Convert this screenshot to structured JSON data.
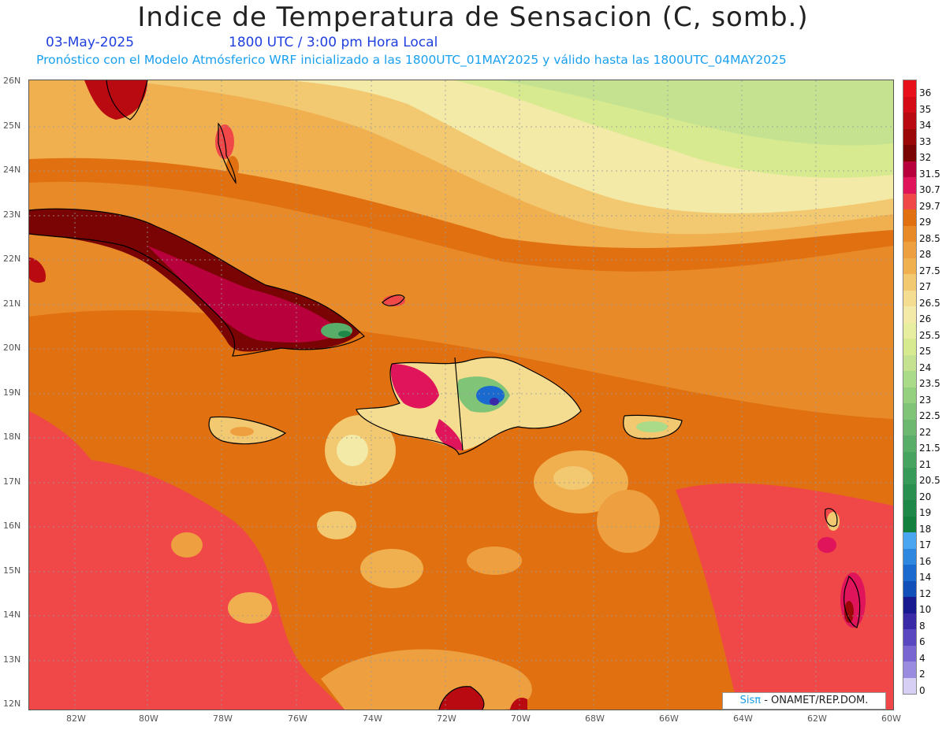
{
  "title": "Indice de Temperatura de Sensacion (C, somb.)",
  "date": "03-May-2025",
  "time": "1800 UTC / 3:00 pm Hora Local",
  "forecast_note": "Pronóstico con el Modelo Atmósferico WRF inicializado a las 1800UTC_01MAY2025 y válido hasta las  1800UTC_04MAY2025",
  "lat_labels": [
    "26N",
    "25N",
    "24N",
    "23N",
    "22N",
    "21N",
    "20N",
    "19N",
    "18N",
    "17N",
    "16N",
    "15N",
    "14N",
    "13N",
    "12N"
  ],
  "lon_labels": [
    "82W",
    "80W",
    "78W",
    "76W",
    "74W",
    "72W",
    "70W",
    "68W",
    "66W",
    "64W",
    "62W",
    "60W"
  ],
  "legend": {
    "labels": [
      "36",
      "35",
      "34",
      "33",
      "32",
      "31.5",
      "30.7",
      "29.7",
      "29",
      "28.5",
      "28",
      "27.5",
      "27",
      "26.5",
      "26",
      "25.5",
      "25",
      "24",
      "23.5",
      "23",
      "22.5",
      "22",
      "21.5",
      "21",
      "20.5",
      "20",
      "19",
      "18",
      "17",
      "16",
      "14",
      "12",
      "10",
      "8",
      "6",
      "4",
      "2",
      "0"
    ],
    "colors": [
      "#e8101a",
      "#d40a14",
      "#b80a10",
      "#9a0808",
      "#7a0404",
      "#b8003c",
      "#e0145a",
      "#f04848",
      "#e07010",
      "#e88a28",
      "#eea040",
      "#f0b050",
      "#f2c870",
      "#f4dc90",
      "#f4eaa8",
      "#e8eea0",
      "#d8ea90",
      "#c4e290",
      "#aadb88",
      "#94d080",
      "#80c478",
      "#6cb870",
      "#58ae68",
      "#46a460",
      "#389a58",
      "#2a9050",
      "#1e8848",
      "#14803e",
      "#4aa6f0",
      "#2e88e0",
      "#1a6ad0",
      "#1050b8",
      "#1a1a90",
      "#3a2aa8",
      "#5a48c0",
      "#7a66d0",
      "#9a8ae0",
      "#d8d0f4"
    ]
  },
  "credit": {
    "brand": "Sisπ",
    "rest": " - ONAMET/REP.DOM."
  }
}
